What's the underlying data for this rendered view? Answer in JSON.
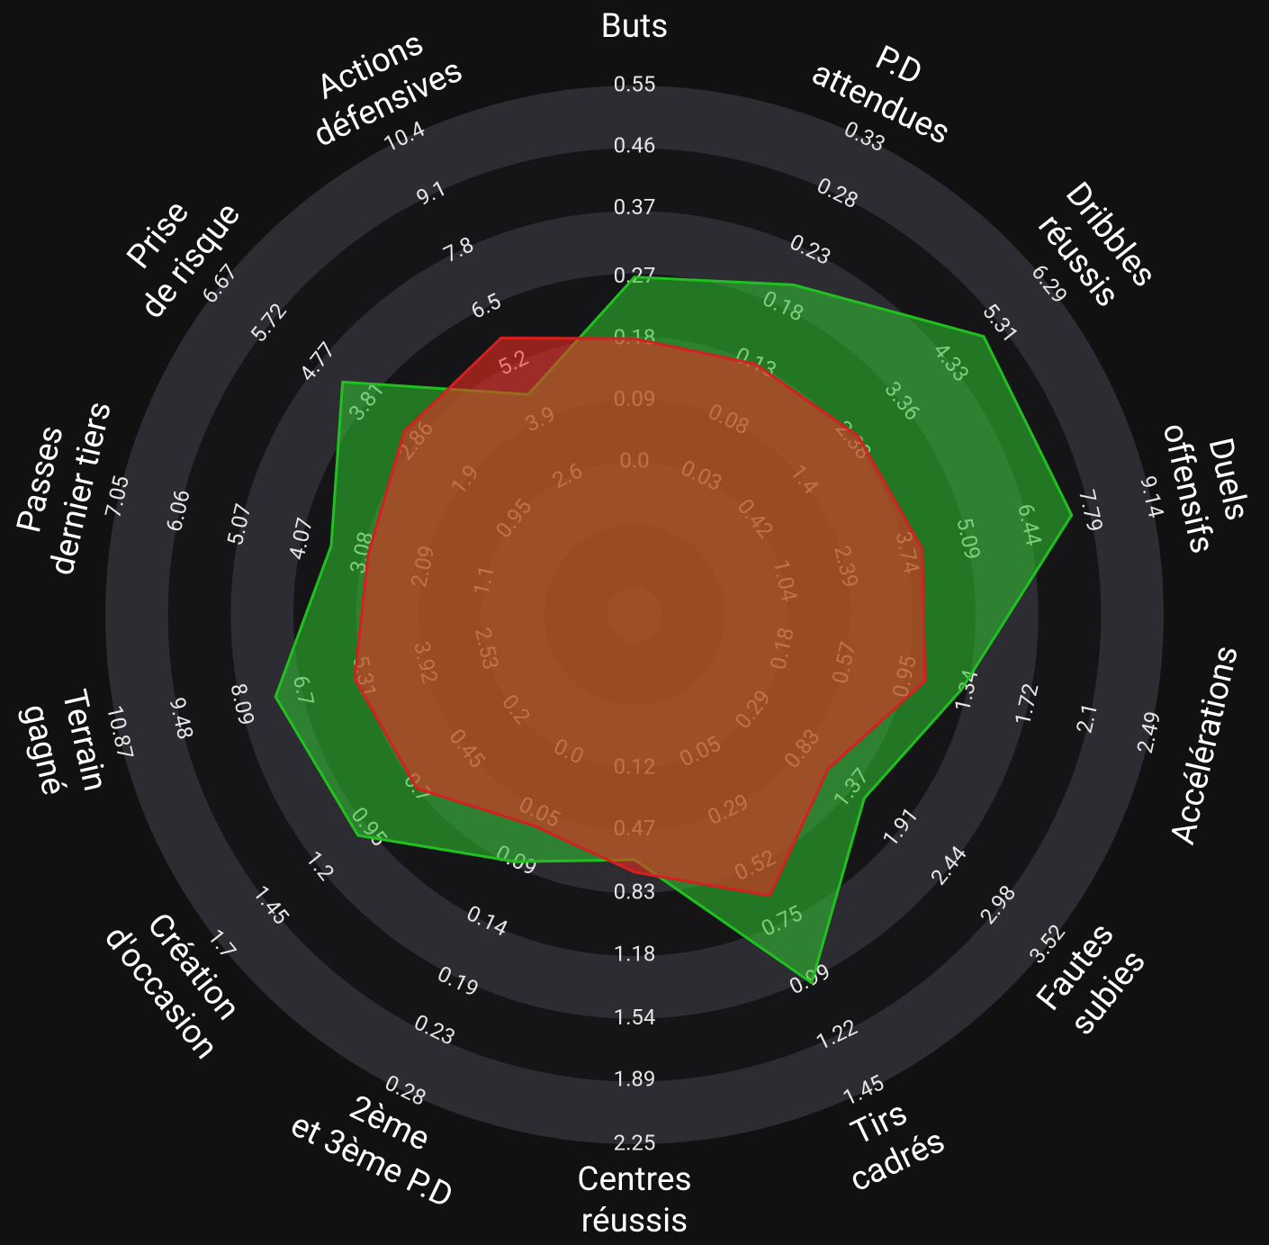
{
  "chart_data": {
    "type": "radar",
    "axes": [
      {
        "label": [
          "Buts"
        ],
        "ticks": [
          {
            "value": 0,
            "label": "0.0"
          },
          0.09,
          0.18,
          0.27,
          0.37,
          0.46,
          0.55
        ],
        "ylim": [
          0,
          0.55
        ]
      },
      {
        "label": [
          "P.D",
          "attendues"
        ],
        "ticks": [
          0.03,
          0.08,
          0.13,
          0.18,
          0.23,
          0.28,
          0.33
        ],
        "ylim": [
          0.03,
          0.33
        ]
      },
      {
        "label": [
          "Dribbles",
          "réussis"
        ],
        "ticks": [
          0.42,
          1.4,
          2.38,
          3.36,
          4.33,
          5.31,
          6.29
        ],
        "ylim": [
          0.42,
          6.29
        ]
      },
      {
        "label": [
          "Duels",
          "offensifs"
        ],
        "ticks": [
          1.04,
          2.39,
          3.74,
          5.09,
          6.44,
          7.79,
          9.14
        ],
        "ylim": [
          1.04,
          9.14
        ]
      },
      {
        "label": [
          "Accélérations"
        ],
        "ticks": [
          0.18,
          0.57,
          0.95,
          1.34,
          1.72,
          2.1,
          2.49
        ],
        "ylim": [
          0.18,
          2.49
        ]
      },
      {
        "label": [
          "Fautes",
          "subies"
        ],
        "ticks": [
          0.29,
          0.83,
          1.37,
          1.91,
          2.44,
          2.98,
          3.52
        ],
        "ylim": [
          0.29,
          3.52
        ]
      },
      {
        "label": [
          "Tirs",
          "cadrés"
        ],
        "ticks": [
          0.05,
          0.29,
          0.52,
          0.75,
          0.99,
          1.22,
          1.45
        ],
        "ylim": [
          0.05,
          1.45
        ]
      },
      {
        "label": [
          "Centres",
          "réussis"
        ],
        "ticks": [
          0.12,
          0.47,
          0.83,
          1.18,
          1.54,
          1.89,
          2.25
        ],
        "ylim": [
          0.12,
          2.25
        ]
      },
      {
        "label": [
          "2ème",
          "et 3ème P.D"
        ],
        "ticks": [
          {
            "value": 0,
            "label": "0.0"
          },
          0.05,
          0.09,
          0.14,
          0.19,
          0.23,
          0.28
        ],
        "ylim": [
          0,
          0.28
        ]
      },
      {
        "label": [
          "Création",
          "d'occasion"
        ],
        "ticks": [
          0.2,
          0.45,
          0.7,
          0.95,
          1.2,
          1.45,
          1.7
        ],
        "ylim": [
          0.2,
          1.7
        ]
      },
      {
        "label": [
          "Terrain",
          "gagné"
        ],
        "ticks": [
          2.53,
          3.92,
          5.31,
          6.7,
          8.09,
          9.48,
          10.87
        ],
        "ylim": [
          2.53,
          10.87
        ]
      },
      {
        "label": [
          "Passes",
          "dernier tiers"
        ],
        "ticks": [
          1.1,
          2.09,
          3.08,
          4.07,
          5.07,
          6.06,
          7.05
        ],
        "ylim": [
          1.1,
          7.05
        ]
      },
      {
        "label": [
          "Prise",
          "de risque"
        ],
        "ticks": [
          0.95,
          1.9,
          2.86,
          3.81,
          4.77,
          5.72,
          6.67
        ],
        "ylim": [
          0.95,
          6.67
        ]
      },
      {
        "label": [
          "Actions",
          "défensives"
        ],
        "ticks": [
          2.6,
          3.9,
          5.2,
          6.5,
          7.8,
          9.1,
          10.4
        ],
        "ylim": [
          2.6,
          10.4
        ]
      }
    ],
    "series": [
      {
        "color": "#2fbf2f",
        "stroke": "#20c020",
        "values": [
          0.27,
          0.2,
          5.0,
          7.4,
          1.3,
          1.5,
          1.0,
          0.64,
          0.09,
          1.0,
          7.3,
          3.6,
          4.3,
          4.5
        ]
      },
      {
        "color": "#f02c22",
        "stroke": "#d42020",
        "values": [
          0.18,
          0.13,
          2.5,
          4.1,
          1.07,
          1.1,
          0.64,
          0.71,
          0.06,
          0.7,
          5.5,
          3.0,
          3.1,
          5.8
        ]
      }
    ]
  }
}
